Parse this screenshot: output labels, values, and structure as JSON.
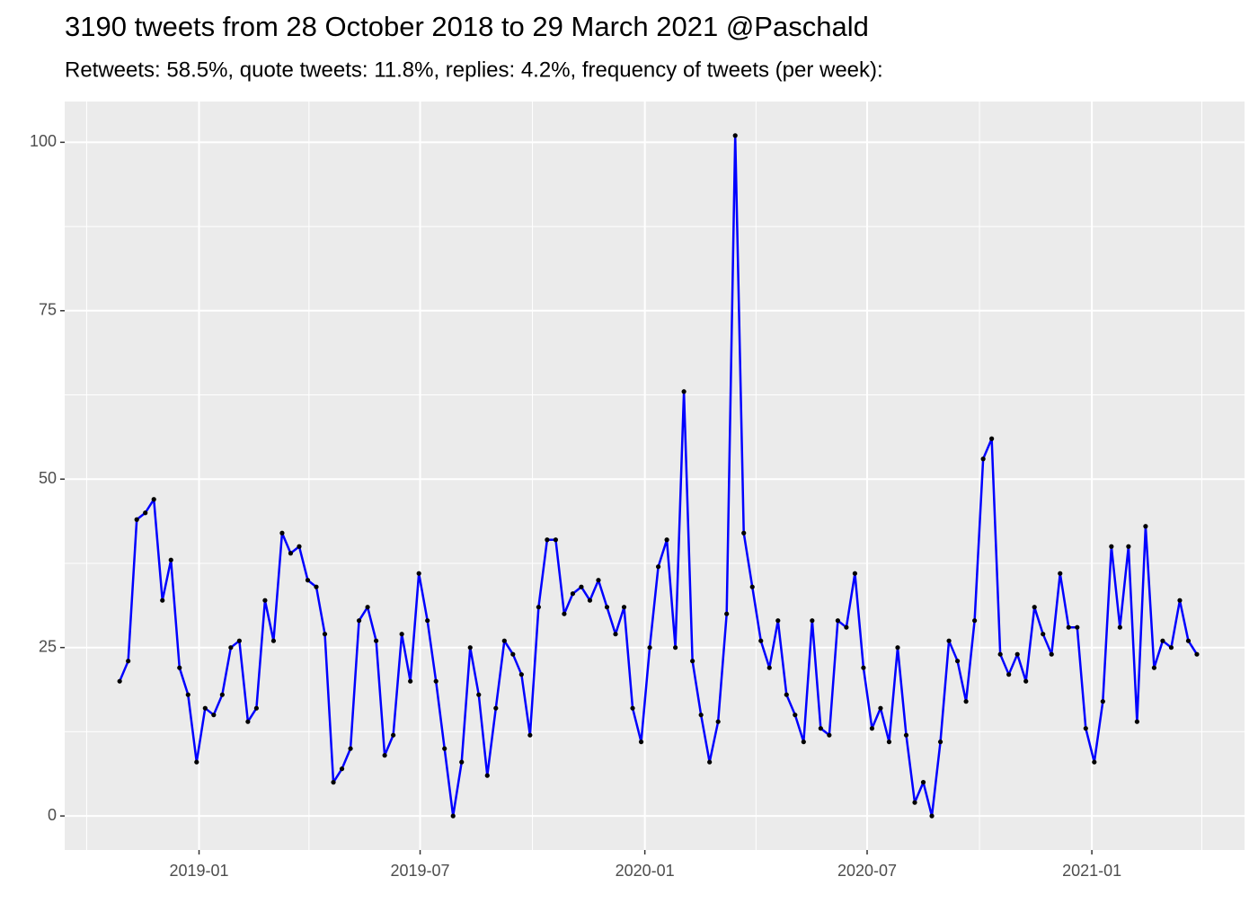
{
  "chart_data": {
    "type": "line",
    "title": "3190 tweets from 28 October 2018 to 29 March 2021 @Paschald",
    "subtitle": "Retweets: 58.5%, quote tweets: 11.8%, replies: 4.2%, frequency of tweets (per week):",
    "x": [
      "2018-10-28",
      "2018-11-04",
      "2018-11-11",
      "2018-11-18",
      "2018-11-25",
      "2018-12-02",
      "2018-12-09",
      "2018-12-16",
      "2018-12-23",
      "2018-12-30",
      "2019-01-06",
      "2019-01-13",
      "2019-01-20",
      "2019-01-27",
      "2019-02-03",
      "2019-02-10",
      "2019-02-17",
      "2019-02-24",
      "2019-03-03",
      "2019-03-10",
      "2019-03-17",
      "2019-03-24",
      "2019-03-31",
      "2019-04-07",
      "2019-04-14",
      "2019-04-21",
      "2019-04-28",
      "2019-05-05",
      "2019-05-12",
      "2019-05-19",
      "2019-05-26",
      "2019-06-02",
      "2019-06-09",
      "2019-06-16",
      "2019-06-23",
      "2019-06-30",
      "2019-07-07",
      "2019-07-14",
      "2019-07-21",
      "2019-07-28",
      "2019-08-04",
      "2019-08-11",
      "2019-08-18",
      "2019-08-25",
      "2019-09-01",
      "2019-09-08",
      "2019-09-15",
      "2019-09-22",
      "2019-09-29",
      "2019-10-06",
      "2019-10-13",
      "2019-10-20",
      "2019-10-27",
      "2019-11-03",
      "2019-11-10",
      "2019-11-17",
      "2019-11-24",
      "2019-12-01",
      "2019-12-08",
      "2019-12-15",
      "2019-12-22",
      "2019-12-29",
      "2020-01-05",
      "2020-01-12",
      "2020-01-19",
      "2020-01-26",
      "2020-02-02",
      "2020-02-09",
      "2020-02-16",
      "2020-02-23",
      "2020-03-01",
      "2020-03-08",
      "2020-03-15",
      "2020-03-22",
      "2020-03-29",
      "2020-04-05",
      "2020-04-12",
      "2020-04-19",
      "2020-04-26",
      "2020-05-03",
      "2020-05-10",
      "2020-05-17",
      "2020-05-24",
      "2020-05-31",
      "2020-06-07",
      "2020-06-14",
      "2020-06-21",
      "2020-06-28",
      "2020-07-05",
      "2020-07-12",
      "2020-07-19",
      "2020-07-26",
      "2020-08-02",
      "2020-08-09",
      "2020-08-16",
      "2020-08-23",
      "2020-08-30",
      "2020-09-06",
      "2020-09-13",
      "2020-09-20",
      "2020-09-27",
      "2020-10-04",
      "2020-10-11",
      "2020-10-18",
      "2020-10-25",
      "2020-11-01",
      "2020-11-08",
      "2020-11-15",
      "2020-11-22",
      "2020-11-29",
      "2020-12-06",
      "2020-12-13",
      "2020-12-20",
      "2020-12-27",
      "2021-01-03",
      "2021-01-10",
      "2021-01-17",
      "2021-01-24",
      "2021-01-31",
      "2021-02-07",
      "2021-02-14",
      "2021-02-21",
      "2021-02-28",
      "2021-03-07",
      "2021-03-14",
      "2021-03-21",
      "2021-03-28"
    ],
    "series": [
      {
        "color": "#0000ff",
        "point_color": "#000000",
        "values": [
          20,
          23,
          44,
          45,
          47,
          32,
          38,
          22,
          18,
          8,
          16,
          15,
          18,
          25,
          26,
          14,
          16,
          32,
          26,
          42,
          39,
          40,
          35,
          34,
          27,
          5,
          7,
          10,
          29,
          31,
          26,
          9,
          12,
          27,
          20,
          36,
          29,
          20,
          10,
          0,
          8,
          25,
          18,
          6,
          16,
          26,
          24,
          21,
          12,
          31,
          41,
          41,
          30,
          33,
          34,
          32,
          35,
          31,
          27,
          31,
          16,
          11,
          25,
          37,
          41,
          25,
          63,
          23,
          15,
          8,
          14,
          30,
          101,
          42,
          34,
          26,
          22,
          29,
          18,
          15,
          11,
          29,
          13,
          12,
          29,
          28,
          36,
          22,
          13,
          16,
          11,
          25,
          12,
          2,
          5,
          0,
          11,
          26,
          23,
          17,
          29,
          53,
          56,
          24,
          21,
          24,
          20,
          31,
          27,
          24,
          36,
          28,
          28,
          13,
          8,
          17,
          40,
          28,
          40,
          14,
          43,
          22,
          26,
          25,
          32,
          26,
          24
        ]
      }
    ],
    "xlim": [
      "2018-09-13",
      "2021-05-06"
    ],
    "xticks": [
      {
        "value": "2019-01-01",
        "label": "2019-01"
      },
      {
        "value": "2019-07-01",
        "label": "2019-07"
      },
      {
        "value": "2020-01-01",
        "label": "2020-01"
      },
      {
        "value": "2020-07-01",
        "label": "2020-07"
      },
      {
        "value": "2021-01-01",
        "label": "2021-01"
      }
    ],
    "xminor": [
      "2018-10-01",
      "2019-04-01",
      "2019-10-01",
      "2020-04-01",
      "2020-10-01",
      "2021-04-01"
    ],
    "ylim": [
      -5.05,
      106.05
    ],
    "yticks": [
      0,
      25,
      50,
      75,
      100
    ],
    "yminor": [
      12.5,
      37.5,
      62.5,
      87.5
    ],
    "grid": true
  }
}
